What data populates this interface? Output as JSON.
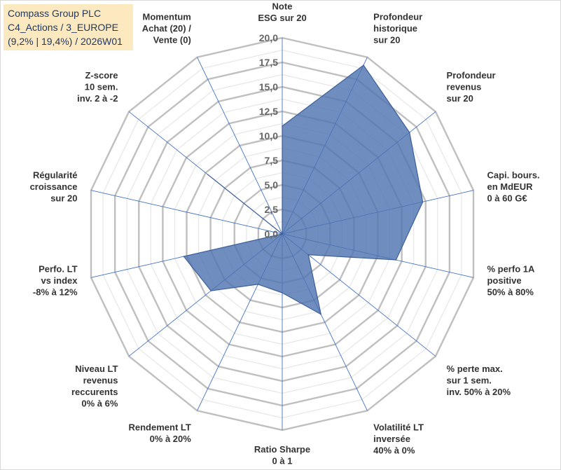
{
  "header": {
    "line1": "Compass Group PLC",
    "line2": "C4_Actions / 3_EUROPE",
    "line3": "(9,2% | 19,4%) / 2026W01"
  },
  "colors": {
    "grid": "#bfbfbf",
    "spoke": "#4472c4",
    "fill": "#4f74b0",
    "stroke": "#3d5f99"
  },
  "chart_data": {
    "type": "radar",
    "title": "Compass Group PLC",
    "rlim": [
      0,
      20
    ],
    "ticks": [
      "0,0",
      "2,5",
      "5,0",
      "7,5",
      "10,0",
      "12,5",
      "15,0",
      "17,5",
      "20,0"
    ],
    "minor_step": 1.25,
    "categories": [
      [
        "Note",
        "ESG sur 20"
      ],
      [
        "Profondeur",
        "historique",
        "sur 20"
      ],
      [
        "Profondeur",
        "revenus",
        "sur 20"
      ],
      [
        "Capi. bours.",
        "en MdEUR",
        "0 à 60 G€"
      ],
      [
        "% perfo 1A",
        "positive",
        "50% à 80%"
      ],
      [
        "% perte max.",
        "sur 1 sem.",
        "inv. 50% à 20%"
      ],
      [
        "Volatilité LT",
        "inversée",
        "40% à 0%"
      ],
      [
        "Ratio Sharpe",
        "0 à 1"
      ],
      [
        "Rendement LT",
        "0% à 20%"
      ],
      [
        "Niveau LT",
        "revenus",
        "reccurents",
        "0% à 6%"
      ],
      [
        "Perfo. LT",
        "vs index",
        "-8% à 12%"
      ],
      [
        "Régularité",
        "croissance",
        "sur 20"
      ],
      [
        "Z-score",
        "10 sem.",
        "inv. 2 à -2"
      ],
      [
        "Momentum",
        "Achat (20) /",
        "Vente (0)"
      ]
    ],
    "series": [
      {
        "name": "Compass Group PLC",
        "values": [
          11.0,
          19.1,
          16.6,
          14.7,
          11.9,
          3.4,
          9.1,
          6.0,
          5.7,
          9.3,
          10.3,
          0.0,
          9.7,
          0.0
        ]
      }
    ]
  }
}
